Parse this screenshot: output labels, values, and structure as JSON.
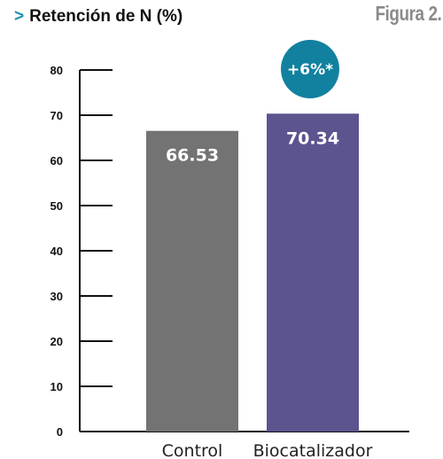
{
  "header": {
    "marker": ">",
    "title": "Retención de N (%)",
    "figure_label": "Figura 2."
  },
  "badge": {
    "text": "+6%*",
    "color": "#12819f"
  },
  "chart_data": {
    "type": "bar",
    "title": "Retención de N (%)",
    "categories": [
      "Control",
      "Biocatalizador"
    ],
    "values": [
      66.53,
      70.34
    ],
    "value_labels": [
      "66.53",
      "70.34"
    ],
    "colors": [
      "#737373",
      "#5c548f"
    ],
    "ylim": [
      0,
      80
    ],
    "yticks": [
      0,
      10,
      20,
      30,
      40,
      50,
      60,
      70,
      80
    ],
    "xlabel": "",
    "ylabel": "",
    "grid": false,
    "annotation": "+6%*"
  }
}
